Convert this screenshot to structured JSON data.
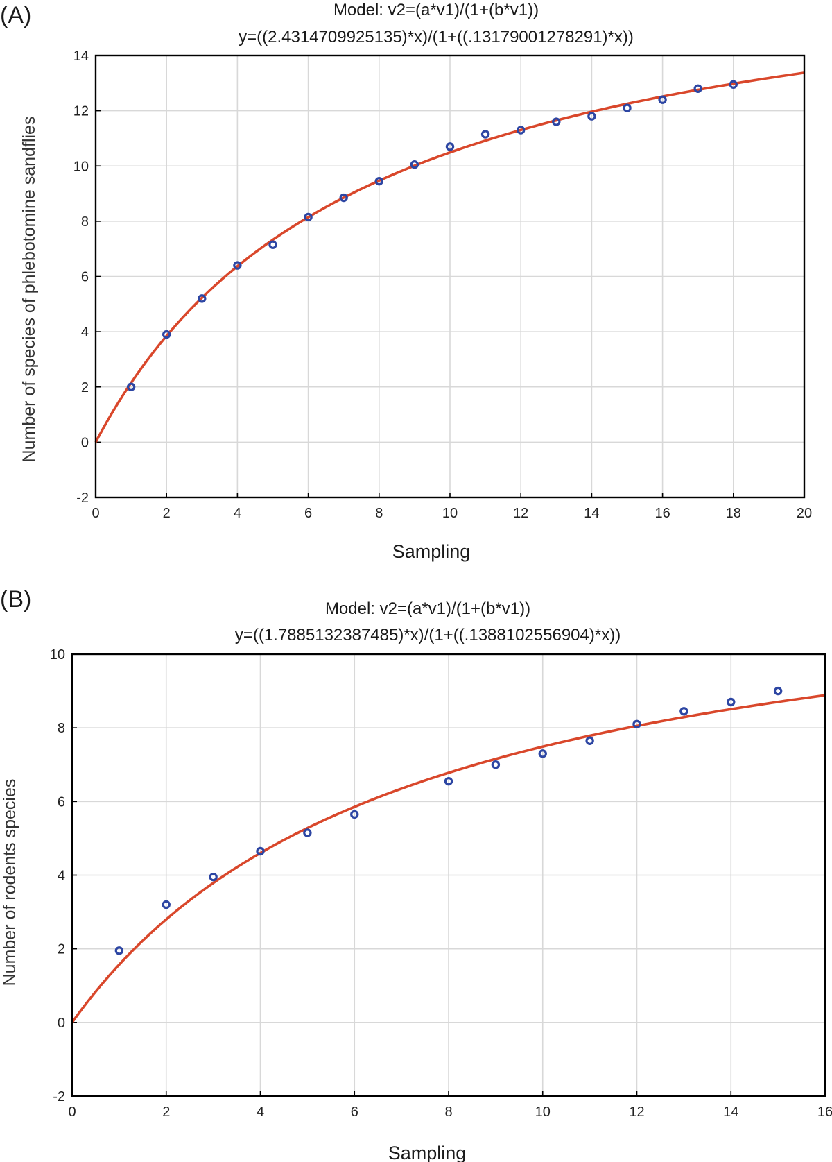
{
  "chart_data": [
    {
      "type": "scatter",
      "panel_label": "(A)",
      "title": "Model: v2=(a*v1)/(1+(b*v1))",
      "subtitle": "y=((2.4314709925135)*x)/(1+((.13179001278291)*x))",
      "xlabel": "Sampling",
      "ylabel": "Number of species of phlebotomine sandflies",
      "xlim": [
        0,
        20
      ],
      "ylim": [
        -2,
        14
      ],
      "xticks": [
        "0",
        "2",
        "4",
        "6",
        "8",
        "10",
        "12",
        "14",
        "16",
        "18",
        "20"
      ],
      "yticks": [
        "-2",
        "0",
        "2",
        "4",
        "6",
        "8",
        "10",
        "12",
        "14"
      ],
      "grid": true,
      "model": {
        "a": 2.4314709925135,
        "b": 0.13179001278291
      },
      "series": [
        {
          "x": [
            1,
            2,
            3,
            4,
            5,
            6,
            7,
            8,
            9,
            10,
            11,
            12,
            13,
            14,
            15,
            16,
            17,
            18
          ],
          "y": [
            2.0,
            3.9,
            5.2,
            6.4,
            7.15,
            8.15,
            8.85,
            9.45,
            10.05,
            10.7,
            11.15,
            11.3,
            11.6,
            11.8,
            12.1,
            12.4,
            12.8,
            12.95
          ]
        }
      ],
      "colors": {
        "fit": "#d9472b",
        "points": "#2d46a3"
      }
    },
    {
      "type": "scatter",
      "panel_label": "(B)",
      "title": "Model: v2=(a*v1)/(1+(b*v1))",
      "subtitle": "y=((1.7885132387485)*x)/(1+((.1388102556904)*x))",
      "xlabel": "Sampling",
      "ylabel": "Number of rodents species",
      "xlim": [
        0,
        16
      ],
      "ylim": [
        -2,
        10
      ],
      "xticks": [
        "0",
        "2",
        "4",
        "6",
        "8",
        "10",
        "12",
        "14",
        "16"
      ],
      "yticks": [
        "-2",
        "0",
        "2",
        "4",
        "6",
        "8",
        "10"
      ],
      "grid": true,
      "model": {
        "a": 1.7885132387485,
        "b": 0.1388102556904
      },
      "series": [
        {
          "x": [
            1,
            2,
            3,
            4,
            5,
            6,
            8,
            9,
            10,
            11,
            12,
            13,
            14,
            15
          ],
          "y": [
            1.95,
            3.2,
            3.95,
            4.65,
            5.15,
            5.65,
            6.55,
            7.0,
            7.3,
            7.65,
            8.1,
            8.45,
            8.7,
            9.0
          ]
        }
      ],
      "colors": {
        "fit": "#d9472b",
        "points": "#2d46a3"
      }
    }
  ]
}
